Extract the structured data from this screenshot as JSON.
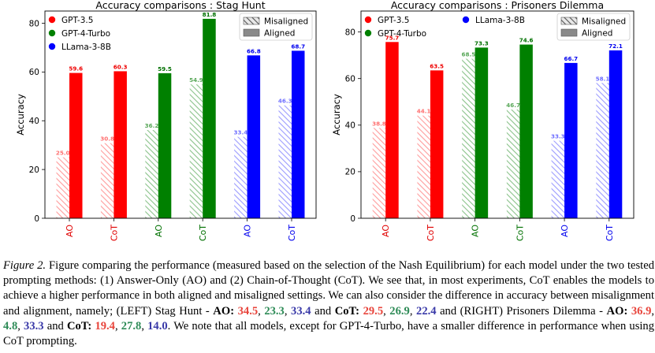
{
  "chart_data": [
    {
      "type": "bar",
      "title": "Accuracy comparisons : Stag Hunt",
      "xlabel": "",
      "ylabel": "Accuracy",
      "ylim": [
        0,
        85
      ],
      "yticks": [
        0,
        20,
        40,
        60,
        80
      ],
      "grid": false,
      "categories": [
        "AO",
        "CoT",
        "AO",
        "CoT",
        "AO",
        "CoT"
      ],
      "category_colors": [
        "#e00000",
        "#e00000",
        "#007000",
        "#007000",
        "#0000ee",
        "#0000ee"
      ],
      "series": [
        {
          "name": "Misaligned",
          "values": [
            25.0,
            30.8,
            36.2,
            54.9,
            33.4,
            46.3
          ]
        },
        {
          "name": "Aligned",
          "values": [
            59.6,
            60.3,
            59.5,
            81.8,
            66.8,
            68.7
          ]
        }
      ],
      "value_labels_misaligned": [
        "25.0",
        "30.8",
        "36.2",
        "54.9",
        "33.4",
        "46.3"
      ],
      "value_labels_aligned": [
        "59.6",
        "60.3",
        "59.5",
        "81.8",
        "66.8",
        "68.7"
      ],
      "models": [
        {
          "name": "GPT-3.5",
          "color": "#ff0000"
        },
        {
          "name": "GPT-4-Turbo",
          "color": "#008000"
        },
        {
          "name": "LLama-3-8B",
          "color": "#0000ff"
        }
      ],
      "model_legend_placement": "top-left",
      "pattern_legend_placement": "top-right"
    },
    {
      "type": "bar",
      "title": "Accuracy comparisons : Prisoners Dilemma",
      "xlabel": "",
      "ylabel": "Accuracy",
      "ylim": [
        0,
        89
      ],
      "yticks": [
        0,
        20,
        40,
        60,
        80
      ],
      "grid": false,
      "categories": [
        "AO",
        "CoT",
        "AO",
        "CoT",
        "AO",
        "CoT"
      ],
      "category_colors": [
        "#e00000",
        "#e00000",
        "#007000",
        "#007000",
        "#0000ee",
        "#0000ee"
      ],
      "series": [
        {
          "name": "Misaligned",
          "values": [
            38.8,
            44.1,
            68.5,
            46.7,
            33.3,
            58.1
          ]
        },
        {
          "name": "Aligned",
          "values": [
            75.7,
            63.5,
            73.3,
            74.6,
            66.7,
            72.1
          ]
        }
      ],
      "value_labels_misaligned": [
        "38.8",
        "44.1",
        "68.5",
        "46.7",
        "33.3",
        "58.1"
      ],
      "value_labels_aligned": [
        "75.7",
        "63.5",
        "73.3",
        "74.6",
        "66.7",
        "72.1"
      ],
      "models": [
        {
          "name": "GPT-3.5",
          "color": "#ff0000"
        },
        {
          "name": "GPT-4-Turbo",
          "color": "#008000"
        },
        {
          "name": "LLama-3-8B",
          "color": "#0000ff"
        }
      ],
      "model_legend_placement": "top-left",
      "pattern_legend_placement": "top-right"
    }
  ],
  "caption": {
    "fig_label": "Figure 2.",
    "text_1": " Figure comparing the performance (measured based on the selection of the Nash Equilibrium) for each model under the two tested prompting methods: (1) Answer-Only (AO) and (2) Chain-of-Thought (CoT). We see that, in most experiments, CoT enables the models to achieve a higher performance in both aligned and misaligned settings. We can also consider the difference in accuracy between misalignment and alignment, namely; (LEFT) Stag Hunt - ",
    "ao_label": "AO:",
    "left_ao_1": "34.5",
    "left_ao_2": "23.3",
    "left_ao_3": "33.4",
    "and_word_1": " and ",
    "cot_label": "CoT:",
    "left_cot_1": "29.5",
    "left_cot_2": "26.9",
    "left_cot_3": "22.4",
    "text_2": " and (RIGHT) Prisoners Dilemma - ",
    "right_ao_1": "36.9",
    "right_ao_2": "4.8",
    "right_ao_3": "33.3",
    "right_cot_1": "19.4",
    "right_cot_2": "27.8",
    "right_cot_3": "14.0",
    "text_3": ". We note that all models, except for GPT-4-Turbo, have a smaller difference in performance when using CoT prompting.",
    "comma": ", "
  },
  "colors": {
    "gpt35": "#ff0000",
    "gpt4turbo": "#008000",
    "llama": "#0000ff"
  }
}
